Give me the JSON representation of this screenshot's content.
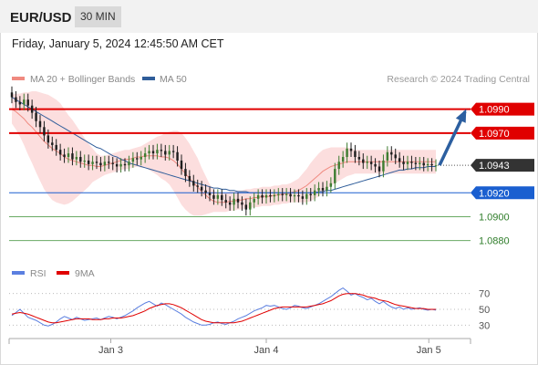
{
  "header": {
    "symbol": "EUR/USD",
    "timeframe": "30 MIN",
    "datetime": "Friday, January 5, 2024 12:45:50 AM CET"
  },
  "legend": {
    "ma20_label": "MA 20 + Bollinger Bands",
    "ma50_label": "MA 50",
    "ma20_color": "#f08a80",
    "ma50_color": "#2f5d9a",
    "credit": "Research © 2024 Trading Central"
  },
  "colors": {
    "resistance": "#e00000",
    "support": "#1a5fd0",
    "target": "#6aaa64",
    "current": "#333333",
    "arrow": "#2c5fa0",
    "bollinger": "#fcdede",
    "rsi": "#5b7fe0",
    "rsi_ma": "#e00000"
  },
  "chart_data": [
    {
      "type": "candlestick",
      "ylim": [
        1.0866,
        1.1005
      ],
      "levels": [
        {
          "value": 1.099,
          "label": "1.0990",
          "kind": "resistance"
        },
        {
          "value": 1.097,
          "label": "1.0970",
          "kind": "resistance"
        },
        {
          "value": 1.0943,
          "label": "1.0943",
          "kind": "current"
        },
        {
          "value": 1.092,
          "label": "1.0920",
          "kind": "support"
        },
        {
          "value": 1.09,
          "label": "1.0900",
          "kind": "target"
        },
        {
          "value": 1.088,
          "label": "1.0880",
          "kind": "target"
        }
      ],
      "close": [
        1.1,
        1.0996,
        1.0994,
        1.0998,
        1.0993,
        1.0987,
        1.098,
        1.0975,
        1.0968,
        1.0962,
        1.096,
        1.0956,
        1.0952,
        1.095,
        1.0953,
        1.0948,
        1.095,
        1.0946,
        1.0947,
        1.0944,
        1.0946,
        1.0945,
        1.0943,
        1.0946,
        1.0945,
        1.0944,
        1.0942,
        1.0944,
        1.0943,
        1.0946,
        1.0949,
        1.0948,
        1.095,
        1.0953,
        1.0955,
        1.0953,
        1.0956,
        1.0955,
        1.0952,
        1.0955,
        1.0954,
        1.0947,
        1.094,
        1.0934,
        1.093,
        1.0926,
        1.0925,
        1.0922,
        1.092,
        1.0918,
        1.0915,
        1.0918,
        1.0914,
        1.0912,
        1.091,
        1.0915,
        1.0912,
        1.091,
        1.0906,
        1.0912,
        1.0915,
        1.0918,
        1.0916,
        1.0918,
        1.0917,
        1.0918,
        1.0919,
        1.0918,
        1.0919,
        1.0917,
        1.0918,
        1.0917,
        1.0915,
        1.0919,
        1.0918,
        1.0922,
        1.0924,
        1.0922,
        1.0925,
        1.0928,
        1.094,
        1.0946,
        1.095,
        1.0957,
        1.0955,
        1.095,
        1.0948,
        1.0945,
        1.0946,
        1.0944,
        1.0942,
        1.0938,
        1.0947,
        1.0954,
        1.0952,
        1.0949,
        1.0946,
        1.0944,
        1.0946,
        1.0945,
        1.0944,
        1.0945,
        1.0943,
        1.0944,
        1.0943,
        1.0943
      ],
      "ma20": [
        1.099,
        1.0988,
        1.0985,
        1.0982,
        1.0978,
        1.0975,
        1.0971,
        1.0967,
        1.0963,
        1.096,
        1.0957,
        1.0955,
        1.0953,
        1.095,
        1.0948,
        1.0947,
        1.0946,
        1.0945,
        1.0944,
        1.0943,
        1.0943,
        1.0942,
        1.0942,
        1.0943,
        1.0944,
        1.0945,
        1.0946,
        1.0947,
        1.0948,
        1.0948,
        1.0949,
        1.095,
        1.095,
        1.0951,
        1.0951,
        1.0951,
        1.0951,
        1.095,
        1.095,
        1.0949,
        1.0947,
        1.0944,
        1.094,
        1.0936,
        1.0932,
        1.0928,
        1.0925,
        1.0921,
        1.0918,
        1.0915,
        1.0913,
        1.0912,
        1.0912,
        1.0912,
        1.0913,
        1.0913,
        1.0914,
        1.0914,
        1.0915,
        1.0915,
        1.0916,
        1.0916,
        1.0917,
        1.0917,
        1.0917,
        1.0918,
        1.0918,
        1.0919,
        1.0919,
        1.092,
        1.0921,
        1.0922,
        1.0924,
        1.0926,
        1.0929,
        1.0932,
        1.0935,
        1.0938,
        1.094,
        1.0942,
        1.0943,
        1.0944,
        1.0945,
        1.0946,
        1.0946,
        1.0946,
        1.0946,
        1.0946,
        1.0946,
        1.0946,
        1.0946,
        1.0946,
        1.0946,
        1.0946,
        1.0946,
        1.0946,
        1.0946,
        1.0946,
        1.0946,
        1.0946,
        1.0946,
        1.0946,
        1.0946,
        1.0946,
        1.0946,
        1.0946
      ],
      "ma50": [
        1.1,
        1.0998,
        1.0996,
        1.0994,
        1.0992,
        1.099,
        1.0988,
        1.0986,
        1.0984,
        1.0982,
        1.098,
        1.0978,
        1.0976,
        1.0974,
        1.0972,
        1.097,
        1.0968,
        1.0966,
        1.0964,
        1.0962,
        1.096,
        1.0958,
        1.0957,
        1.0955,
        1.0953,
        1.0951,
        1.095,
        1.0948,
        1.0947,
        1.0945,
        1.0944,
        1.0943,
        1.0942,
        1.0941,
        1.094,
        1.0939,
        1.0938,
        1.0937,
        1.0936,
        1.0935,
        1.0934,
        1.0933,
        1.0932,
        1.0931,
        1.093,
        1.0929,
        1.0928,
        1.0927,
        1.0926,
        1.0925,
        1.0924,
        1.0924,
        1.0923,
        1.0923,
        1.0922,
        1.0922,
        1.0921,
        1.0921,
        1.0921,
        1.092,
        1.092,
        1.092,
        1.092,
        1.092,
        1.092,
        1.092,
        1.092,
        1.092,
        1.092,
        1.092,
        1.092,
        1.092,
        1.092,
        1.092,
        1.092,
        1.092,
        1.0921,
        1.0921,
        1.0922,
        1.0922,
        1.0923,
        1.0924,
        1.0925,
        1.0926,
        1.0927,
        1.0928,
        1.0929,
        1.093,
        1.0931,
        1.0932,
        1.0933,
        1.0934,
        1.0935,
        1.0936,
        1.0937,
        1.0938,
        1.0939,
        1.0939,
        1.094,
        1.094,
        1.0941,
        1.0941,
        1.0941,
        1.0942,
        1.0942,
        1.0942
      ],
      "bb_width": [
        0.0012,
        0.0015,
        0.0018,
        0.0022,
        0.0026,
        0.003,
        0.0034,
        0.0037,
        0.004,
        0.0042,
        0.0043,
        0.0043,
        0.0042,
        0.004,
        0.0037,
        0.0034,
        0.003,
        0.0026,
        0.0022,
        0.0018,
        0.0014,
        0.0011,
        0.0009,
        0.0008,
        0.0008,
        0.0008,
        0.0008,
        0.0008,
        0.0008,
        0.0008,
        0.0008,
        0.0008,
        0.0009,
        0.001,
        0.0012,
        0.0014,
        0.0016,
        0.0018,
        0.002,
        0.0022,
        0.0025,
        0.0028,
        0.003,
        0.003,
        0.0029,
        0.0027,
        0.0024,
        0.002,
        0.0016,
        0.0012,
        0.0009,
        0.0008,
        0.0008,
        0.0008,
        0.0008,
        0.0008,
        0.0008,
        0.0008,
        0.0008,
        0.0008,
        0.0008,
        0.0008,
        0.0008,
        0.0008,
        0.0008,
        0.0008,
        0.0008,
        0.0008,
        0.0008,
        0.0008,
        0.0009,
        0.001,
        0.0012,
        0.0014,
        0.0016,
        0.0017,
        0.0018,
        0.0018,
        0.0017,
        0.0016,
        0.0015,
        0.0014,
        0.0013,
        0.0012,
        0.0011,
        0.001,
        0.001,
        0.001,
        0.001,
        0.001,
        0.001,
        0.001,
        0.001,
        0.001,
        0.001,
        0.001,
        0.001,
        0.001,
        0.001,
        0.001,
        0.001,
        0.001,
        0.001,
        0.001,
        0.001,
        0.001
      ]
    },
    {
      "type": "line",
      "legend": {
        "rsi_label": "RSI",
        "ma_label": "9MA"
      },
      "ylim": [
        20,
        80
      ],
      "yticks": [
        70,
        50,
        30
      ],
      "rsi": [
        42,
        46,
        50,
        45,
        40,
        38,
        36,
        33,
        30,
        29,
        31,
        34,
        38,
        41,
        39,
        37,
        40,
        38,
        36,
        37,
        38,
        39,
        37,
        39,
        41,
        40,
        38,
        40,
        42,
        45,
        48,
        52,
        55,
        58,
        60,
        57,
        54,
        58,
        56,
        53,
        50,
        47,
        44,
        40,
        37,
        34,
        32,
        30,
        30,
        31,
        33,
        34,
        32,
        31,
        33,
        35,
        38,
        40,
        42,
        45,
        48,
        50,
        52,
        55,
        54,
        55,
        53,
        51,
        50,
        52,
        55,
        54,
        52,
        51,
        53,
        55,
        57,
        60,
        63,
        66,
        70,
        74,
        77,
        73,
        68,
        70,
        67,
        65,
        62,
        64,
        60,
        57,
        60,
        56,
        53,
        51,
        53,
        50,
        52,
        50,
        51,
        52,
        50,
        49,
        50,
        49
      ],
      "rsi_ma": [
        44,
        45,
        46,
        45,
        44,
        42,
        40,
        38,
        36,
        34,
        33,
        33,
        34,
        35,
        36,
        37,
        38,
        38,
        38,
        38,
        37,
        37,
        37,
        38,
        38,
        39,
        39,
        39,
        40,
        41,
        42,
        44,
        46,
        48,
        51,
        53,
        55,
        56,
        57,
        57,
        56,
        54,
        52,
        49,
        46,
        43,
        40,
        37,
        35,
        34,
        33,
        33,
        33,
        33,
        33,
        33,
        34,
        35,
        37,
        39,
        41,
        43,
        45,
        47,
        49,
        51,
        52,
        53,
        53,
        53,
        53,
        53,
        53,
        53,
        54,
        55,
        56,
        57,
        59,
        61,
        64,
        67,
        69,
        70,
        70,
        70,
        69,
        68,
        66,
        65,
        64,
        62,
        61,
        60,
        58,
        56,
        55,
        54,
        53,
        52,
        51,
        51,
        51,
        50,
        50,
        50
      ]
    }
  ],
  "x_axis": {
    "ticks": [
      {
        "index": 28,
        "label": "Jan 3"
      },
      {
        "index": 72,
        "label": "Jan 4"
      },
      {
        "index": 118,
        "label": "Jan 5"
      }
    ]
  }
}
